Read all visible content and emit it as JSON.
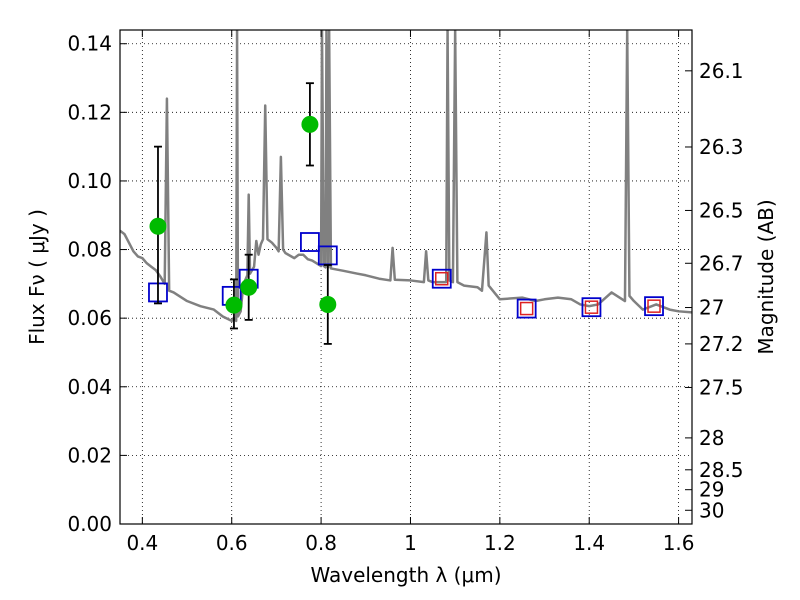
{
  "chart_data": {
    "type": "scatter",
    "title": "",
    "xlabel": "Wavelength  λ (μm)",
    "ylabel": "Flux  Fν  ( μJy )",
    "y2label": "Magnitude (AB)",
    "xlim": [
      0.35,
      1.63
    ],
    "ylim": [
      0.0,
      0.144
    ],
    "grid": true,
    "x_ticks": [
      0.4,
      0.6,
      0.8,
      1.0,
      1.2,
      1.4,
      1.6
    ],
    "x_tick_labels": [
      "0.4",
      "0.6",
      "0.8",
      "1",
      "1.2",
      "1.4",
      "1.6"
    ],
    "y_ticks": [
      0.0,
      0.02,
      0.04,
      0.06,
      0.08,
      0.1,
      0.12,
      0.14
    ],
    "y_tick_labels": [
      "0.00",
      "0.02",
      "0.04",
      "0.06",
      "0.08",
      "0.10",
      "0.12",
      "0.14"
    ],
    "mag_ticks": [
      {
        "label": "26.1",
        "flux": 0.1321
      },
      {
        "label": "26.3",
        "flux": 0.1099
      },
      {
        "label": "26.5",
        "flux": 0.0914
      },
      {
        "label": "26.7",
        "flux": 0.076
      },
      {
        "label": "27",
        "flux": 0.0631
      },
      {
        "label": "27.2",
        "flux": 0.0525
      },
      {
        "label": "27.5",
        "flux": 0.0398
      },
      {
        "label": "28",
        "flux": 0.0251
      },
      {
        "label": "28.5",
        "flux": 0.0158
      },
      {
        "label": "29",
        "flux": 0.01
      },
      {
        "label": "30",
        "flux": 0.004
      }
    ],
    "series": [
      {
        "kind": "model_spectrum",
        "color": "#808080",
        "points": [
          [
            0.35,
            0.0855
          ],
          [
            0.36,
            0.0845
          ],
          [
            0.37,
            0.082
          ],
          [
            0.38,
            0.0795
          ],
          [
            0.39,
            0.078
          ],
          [
            0.4,
            0.0775
          ],
          [
            0.41,
            0.076
          ],
          [
            0.42,
            0.075
          ],
          [
            0.43,
            0.074
          ],
          [
            0.44,
            0.0722
          ],
          [
            0.45,
            0.07
          ],
          [
            0.455,
            0.124
          ],
          [
            0.46,
            0.068
          ],
          [
            0.47,
            0.0675
          ],
          [
            0.5,
            0.065
          ],
          [
            0.53,
            0.0635
          ],
          [
            0.56,
            0.0625
          ],
          [
            0.58,
            0.0605
          ],
          [
            0.6,
            0.0592
          ],
          [
            0.605,
            0.06
          ],
          [
            0.61,
            0.0592
          ],
          [
            0.612,
            0.144
          ],
          [
            0.614,
            0.0605
          ],
          [
            0.62,
            0.062
          ],
          [
            0.625,
            0.0685
          ],
          [
            0.63,
            0.071
          ],
          [
            0.635,
            0.0725
          ],
          [
            0.638,
            0.096
          ],
          [
            0.641,
            0.073
          ],
          [
            0.65,
            0.075
          ],
          [
            0.655,
            0.0825
          ],
          [
            0.66,
            0.0785
          ],
          [
            0.665,
            0.0815
          ],
          [
            0.67,
            0.083
          ],
          [
            0.675,
            0.122
          ],
          [
            0.68,
            0.083
          ],
          [
            0.69,
            0.082
          ],
          [
            0.7,
            0.0805
          ],
          [
            0.705,
            0.0795
          ],
          [
            0.71,
            0.107
          ],
          [
            0.715,
            0.08
          ],
          [
            0.72,
            0.079
          ],
          [
            0.74,
            0.0775
          ],
          [
            0.75,
            0.0785
          ],
          [
            0.76,
            0.0785
          ],
          [
            0.77,
            0.0772
          ],
          [
            0.78,
            0.0768
          ],
          [
            0.79,
            0.076
          ],
          [
            0.8,
            0.0752
          ],
          [
            0.802,
            0.144
          ],
          [
            0.806,
            0.0752
          ],
          [
            0.81,
            0.0748
          ],
          [
            0.812,
            0.144
          ],
          [
            0.816,
            0.0748
          ],
          [
            0.818,
            0.144
          ],
          [
            0.822,
            0.0745
          ],
          [
            0.85,
            0.0738
          ],
          [
            0.88,
            0.073
          ],
          [
            0.9,
            0.0725
          ],
          [
            0.93,
            0.0715
          ],
          [
            0.955,
            0.071
          ],
          [
            0.96,
            0.0805
          ],
          [
            0.965,
            0.0712
          ],
          [
            1.0,
            0.071
          ],
          [
            1.03,
            0.0705
          ],
          [
            1.035,
            0.0795
          ],
          [
            1.04,
            0.071
          ],
          [
            1.05,
            0.0705
          ],
          [
            1.08,
            0.0705
          ],
          [
            1.083,
            0.144
          ],
          [
            1.087,
            0.071
          ],
          [
            1.095,
            0.0705
          ],
          [
            1.1,
            0.144
          ],
          [
            1.105,
            0.0705
          ],
          [
            1.12,
            0.0695
          ],
          [
            1.15,
            0.069
          ],
          [
            1.16,
            0.068
          ],
          [
            1.17,
            0.085
          ],
          [
            1.175,
            0.0695
          ],
          [
            1.2,
            0.0655
          ],
          [
            1.25,
            0.066
          ],
          [
            1.28,
            0.065
          ],
          [
            1.3,
            0.0655
          ],
          [
            1.33,
            0.066
          ],
          [
            1.36,
            0.0655
          ],
          [
            1.38,
            0.064
          ],
          [
            1.4,
            0.0635
          ],
          [
            1.42,
            0.064
          ],
          [
            1.45,
            0.0675
          ],
          [
            1.48,
            0.065
          ],
          [
            1.485,
            0.144
          ],
          [
            1.49,
            0.0665
          ],
          [
            1.5,
            0.065
          ],
          [
            1.52,
            0.0625
          ],
          [
            1.55,
            0.064
          ],
          [
            1.58,
            0.0625
          ],
          [
            1.6,
            0.062
          ],
          [
            1.63,
            0.0617
          ]
        ]
      },
      {
        "kind": "observed",
        "color": "#00bb00",
        "points": [
          {
            "x": 0.435,
            "y": 0.0868,
            "err_low": 0.0225,
            "err_high": 0.0232
          },
          {
            "x": 0.605,
            "y": 0.0638,
            "err_low": 0.0068,
            "err_high": 0.0075
          },
          {
            "x": 0.638,
            "y": 0.069,
            "err_low": 0.0095,
            "err_high": 0.0095
          },
          {
            "x": 0.775,
            "y": 0.1165,
            "err_low": 0.012,
            "err_high": 0.012
          },
          {
            "x": 0.815,
            "y": 0.064,
            "err_low": 0.0115,
            "err_high": 0.0115
          }
        ]
      },
      {
        "kind": "model_band_flux",
        "color": "#0000cc",
        "points": [
          [
            0.435,
            0.0675
          ],
          [
            0.6,
            0.0665
          ],
          [
            0.638,
            0.0715
          ],
          [
            0.775,
            0.0822
          ],
          [
            0.815,
            0.0783
          ],
          [
            1.07,
            0.0715
          ],
          [
            1.26,
            0.0628
          ],
          [
            1.405,
            0.0632
          ],
          [
            1.545,
            0.0635
          ]
        ]
      },
      {
        "kind": "model_band_flux_ir",
        "color": "#dd2222",
        "points": [
          [
            1.07,
            0.0715
          ],
          [
            1.26,
            0.0628
          ],
          [
            1.405,
            0.0632
          ],
          [
            1.545,
            0.0635
          ]
        ]
      }
    ]
  }
}
